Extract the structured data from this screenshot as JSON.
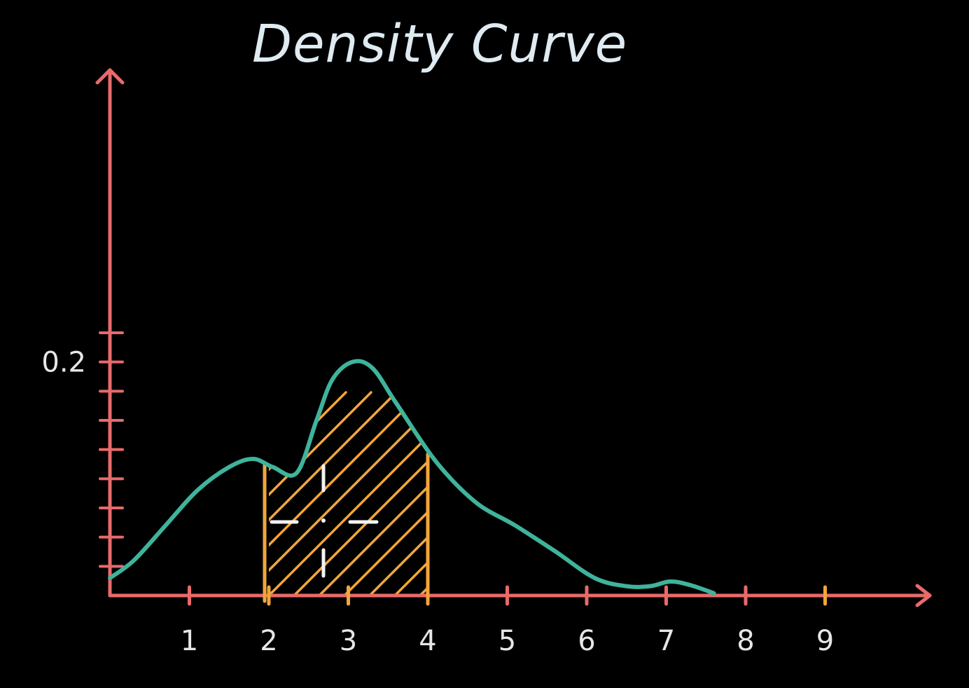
{
  "chart_data": {
    "type": "line",
    "title": "Density Curve",
    "x_tick_labels": [
      "1",
      "2",
      "3",
      "4",
      "5",
      "6",
      "7",
      "8",
      "9"
    ],
    "y_tick_label": {
      "value": 0.2,
      "text": "0.2"
    },
    "xlim": [
      0,
      10
    ],
    "ylim": [
      0,
      0.36
    ],
    "y_tick_step": 0.025,
    "grid": false,
    "series": [
      {
        "color": "#3fb39c",
        "x": [
          0,
          0.3,
          0.7,
          1.1,
          1.5,
          1.8,
          2.05,
          2.35,
          2.6,
          2.8,
          3.05,
          3.3,
          3.6,
          4.1,
          4.6,
          5.1,
          5.6,
          6.1,
          6.5,
          6.8,
          7.05,
          7.3,
          7.6
        ],
        "y": [
          0.015,
          0.03,
          0.06,
          0.09,
          0.11,
          0.117,
          0.11,
          0.105,
          0.15,
          0.185,
          0.2,
          0.195,
          0.165,
          0.115,
          0.08,
          0.06,
          0.038,
          0.015,
          0.008,
          0.008,
          0.012,
          0.009,
          0.002
        ]
      }
    ],
    "shaded_region": {
      "from": 2,
      "to": 4,
      "color": "#f1a63a"
    },
    "colors": {
      "axes": "#e86a6a",
      "curve": "#3fb39c",
      "highlight": "#f1a63a",
      "text": "#e6e6e6"
    }
  }
}
